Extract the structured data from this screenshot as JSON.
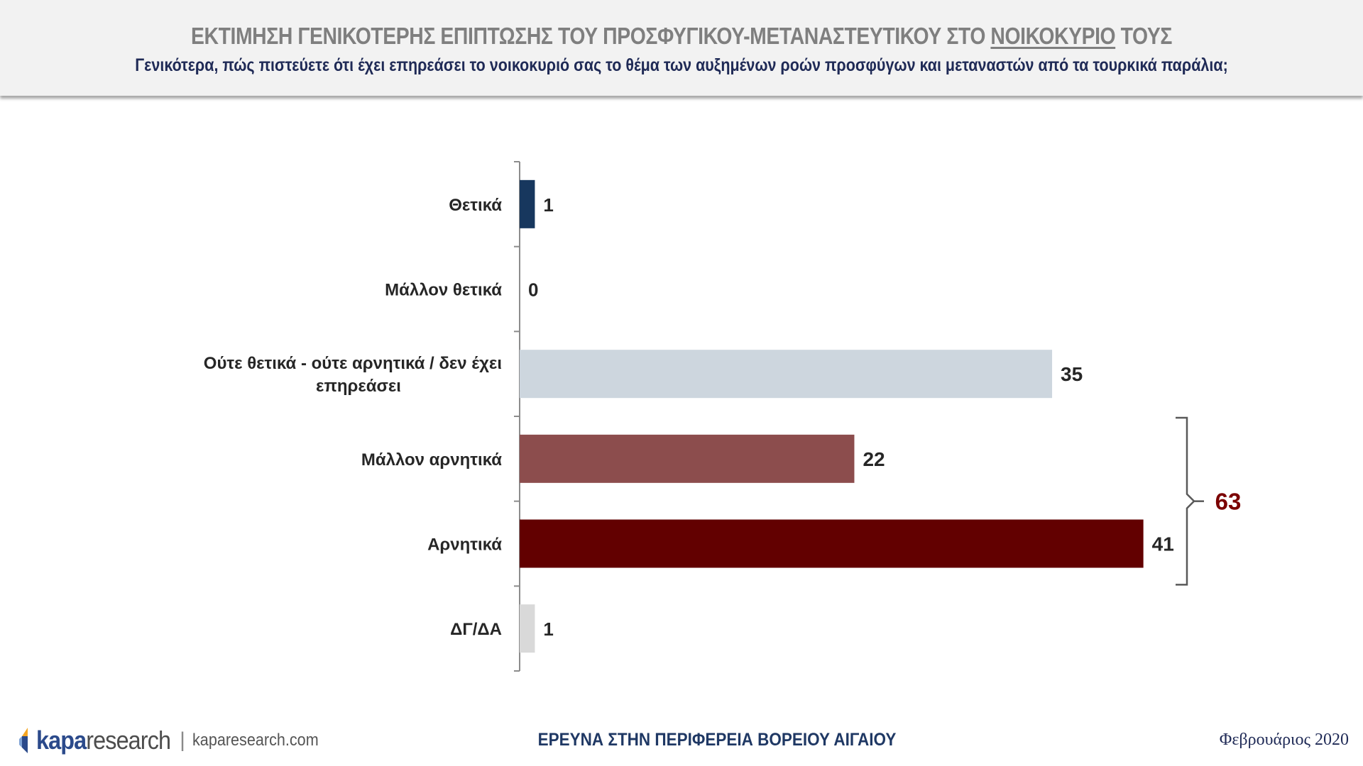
{
  "header": {
    "title_before": "ΕΚΤΙΜΗΣΗ ΓΕΝΙΚΟΤΕΡΗΣ ΕΠΙΠΤΩΣΗΣ ΤΟΥ ΠΡΟΣΦΥΓΙΚΟΥ-ΜΕΤΑΝΑΣΤΕΥΤΙΚΟΥ ΣΤΟ ",
    "title_underlined": "ΝΟΙΚΟΚΥΡΙΟ",
    "title_after": " ΤΟΥΣ",
    "subtitle": "Γενικότερα, πώς πιστεύετε ότι έχει επηρεάσει το νοικοκυριό σας το θέμα των αυξημένων ροών προσφύγων και μεταναστών από τα τουρκικά παράλια;"
  },
  "chart_data": {
    "type": "bar",
    "orientation": "horizontal",
    "categories": [
      "Θετικά",
      "Μάλλον θετικά",
      "Ούτε θετικά - ούτε αρνητικά / δεν έχει επηρεάσει",
      "Μάλλον αρνητικά",
      "Αρνητικά",
      "ΔΓ/ΔΑ"
    ],
    "category_lines": [
      [
        "Θετικά"
      ],
      [
        "Μάλλον θετικά"
      ],
      [
        "Ούτε θετικά - ούτε αρνητικά / δεν έχει",
        "επηρεάσει"
      ],
      [
        "Μάλλον αρνητικά"
      ],
      [
        "Αρνητικά"
      ],
      [
        "ΔΓ/ΔΑ"
      ]
    ],
    "values": [
      1,
      0,
      35,
      22,
      41,
      1
    ],
    "colors": [
      "#17375e",
      "#17375e",
      "#cdd6de",
      "#8c4d4d",
      "#620000",
      "#d9d9d9"
    ],
    "xlim": [
      0,
      45
    ],
    "bracket": {
      "from_index": 3,
      "to_index": 4,
      "label": "63",
      "color": "#7b0000"
    }
  },
  "footer": {
    "logo_bold": "kapa",
    "logo_rest": "research",
    "separator": "|",
    "url": "kaparesearch.com",
    "center": "ΕΡΕΥΝΑ ΣΤΗΝ ΠΕΡΙΦΕΡΕΙΑ ΒΟΡΕΙΟΥ ΑΙΓΑΙΟΥ",
    "date": "Φεβρουάριος 2020"
  }
}
